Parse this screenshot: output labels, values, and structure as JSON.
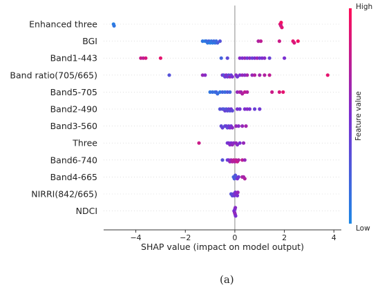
{
  "panel_label": "(a)",
  "colors": {
    "low": "#1e88e5",
    "high": "#ff0d57",
    "zero_line": "#888888"
  },
  "chart_data": {
    "type": "scatter",
    "subtype": "shap-beeswarm",
    "xlabel": "SHAP value (impact on model output)",
    "xlim": [
      -5.3,
      4.3
    ],
    "x_ticks": [
      -4,
      -2,
      0,
      2,
      4
    ],
    "x_tick_labels": [
      "−4",
      "−2",
      "0",
      "2",
      "4"
    ],
    "colorbar": {
      "label": "Feature value",
      "high_label": "High",
      "low_label": "Low"
    },
    "features": [
      {
        "name": "Enhanced three",
        "points": [
          [
            -4.9,
            0.05
          ],
          [
            -4.88,
            0.1
          ],
          [
            1.83,
            0.85
          ],
          [
            1.85,
            0.9
          ],
          [
            1.86,
            0.8
          ],
          [
            1.87,
            0.95
          ],
          [
            1.9,
            0.88
          ]
        ]
      },
      {
        "name": "BGI",
        "points": [
          [
            -1.3,
            0.1
          ],
          [
            -1.2,
            0.05
          ],
          [
            -1.15,
            0.15
          ],
          [
            -1.1,
            0.1
          ],
          [
            -1.05,
            0.2
          ],
          [
            -1.0,
            0.05
          ],
          [
            -0.95,
            0.12
          ],
          [
            -0.9,
            0.08
          ],
          [
            -0.85,
            0.18
          ],
          [
            -0.8,
            0.1
          ],
          [
            -0.75,
            0.15
          ],
          [
            -0.7,
            0.22
          ],
          [
            -0.6,
            0.3
          ],
          [
            0.95,
            0.7
          ],
          [
            1.05,
            0.75
          ],
          [
            1.8,
            0.8
          ],
          [
            2.35,
            0.9
          ],
          [
            2.4,
            0.85
          ],
          [
            2.55,
            0.95
          ]
        ]
      },
      {
        "name": "Band1-443",
        "points": [
          [
            -3.8,
            0.8
          ],
          [
            -3.7,
            0.75
          ],
          [
            -3.6,
            0.85
          ],
          [
            -3.0,
            0.9
          ],
          [
            -0.55,
            0.2
          ],
          [
            -0.3,
            0.35
          ],
          [
            0.2,
            0.55
          ],
          [
            0.3,
            0.5
          ],
          [
            0.4,
            0.6
          ],
          [
            0.5,
            0.45
          ],
          [
            0.6,
            0.55
          ],
          [
            0.7,
            0.4
          ],
          [
            0.8,
            0.5
          ],
          [
            0.9,
            0.6
          ],
          [
            1.0,
            0.45
          ],
          [
            1.1,
            0.5
          ],
          [
            1.2,
            0.55
          ],
          [
            1.4,
            0.4
          ],
          [
            2.0,
            0.5
          ]
        ]
      },
      {
        "name": "Band ratio(705/665)",
        "points": [
          [
            -2.65,
            0.3
          ],
          [
            -1.3,
            0.6
          ],
          [
            -1.2,
            0.55
          ],
          [
            -0.5,
            0.5
          ],
          [
            -0.45,
            0.3
          ],
          [
            -0.4,
            0.4
          ],
          [
            -0.35,
            0.55
          ],
          [
            -0.3,
            0.45
          ],
          [
            -0.25,
            0.35
          ],
          [
            -0.2,
            0.6
          ],
          [
            -0.15,
            0.4
          ],
          [
            -0.1,
            0.5
          ],
          [
            0.05,
            0.55
          ],
          [
            0.1,
            0.45
          ],
          [
            0.2,
            0.5
          ],
          [
            0.3,
            0.6
          ],
          [
            0.4,
            0.55
          ],
          [
            0.5,
            0.65
          ],
          [
            0.7,
            0.6
          ],
          [
            0.8,
            0.7
          ],
          [
            1.0,
            0.65
          ],
          [
            1.2,
            0.7
          ],
          [
            1.4,
            0.75
          ],
          [
            3.75,
            0.9
          ]
        ]
      },
      {
        "name": "Band5-705",
        "points": [
          [
            -1.0,
            0.1
          ],
          [
            -0.9,
            0.15
          ],
          [
            -0.8,
            0.1
          ],
          [
            -0.75,
            0.2
          ],
          [
            -0.7,
            0.15
          ],
          [
            -0.6,
            0.1
          ],
          [
            -0.5,
            0.2
          ],
          [
            -0.4,
            0.15
          ],
          [
            -0.3,
            0.25
          ],
          [
            -0.2,
            0.2
          ],
          [
            0.1,
            0.6
          ],
          [
            0.2,
            0.7
          ],
          [
            0.25,
            0.65
          ],
          [
            0.3,
            0.7
          ],
          [
            0.4,
            0.75
          ],
          [
            0.5,
            0.7
          ],
          [
            1.5,
            0.8
          ],
          [
            1.8,
            0.85
          ],
          [
            1.95,
            0.9
          ]
        ]
      },
      {
        "name": "Band2-490",
        "points": [
          [
            -0.6,
            0.3
          ],
          [
            -0.5,
            0.35
          ],
          [
            -0.45,
            0.25
          ],
          [
            -0.4,
            0.4
          ],
          [
            -0.35,
            0.3
          ],
          [
            -0.3,
            0.35
          ],
          [
            -0.25,
            0.4
          ],
          [
            -0.2,
            0.3
          ],
          [
            -0.15,
            0.45
          ],
          [
            -0.1,
            0.35
          ],
          [
            0.1,
            0.5
          ],
          [
            0.2,
            0.45
          ],
          [
            0.4,
            0.5
          ],
          [
            0.5,
            0.55
          ],
          [
            0.6,
            0.5
          ],
          [
            0.8,
            0.4
          ],
          [
            1.0,
            0.45
          ]
        ]
      },
      {
        "name": "Band3-560",
        "points": [
          [
            -0.55,
            0.35
          ],
          [
            -0.5,
            0.4
          ],
          [
            -0.4,
            0.3
          ],
          [
            -0.35,
            0.45
          ],
          [
            -0.3,
            0.35
          ],
          [
            -0.25,
            0.4
          ],
          [
            -0.2,
            0.5
          ],
          [
            -0.15,
            0.45
          ],
          [
            -0.1,
            0.55
          ],
          [
            0.05,
            0.6
          ],
          [
            0.15,
            0.55
          ],
          [
            0.3,
            0.6
          ],
          [
            0.45,
            0.65
          ]
        ]
      },
      {
        "name": "Three",
        "points": [
          [
            -1.45,
            0.8
          ],
          [
            -0.3,
            0.45
          ],
          [
            -0.25,
            0.5
          ],
          [
            -0.2,
            0.55
          ],
          [
            -0.15,
            0.5
          ],
          [
            -0.1,
            0.6
          ],
          [
            -0.05,
            0.55
          ],
          [
            0.05,
            0.6
          ],
          [
            0.1,
            0.55
          ],
          [
            0.2,
            0.5
          ],
          [
            0.35,
            0.6
          ]
        ]
      },
      {
        "name": "Band6-740",
        "points": [
          [
            -0.5,
            0.3
          ],
          [
            -0.3,
            0.4
          ],
          [
            -0.25,
            0.5
          ],
          [
            -0.2,
            0.6
          ],
          [
            -0.15,
            0.65
          ],
          [
            -0.1,
            0.7
          ],
          [
            -0.05,
            0.75
          ],
          [
            0.0,
            0.7
          ],
          [
            0.05,
            0.75
          ],
          [
            0.1,
            0.8
          ],
          [
            0.15,
            0.7
          ],
          [
            0.3,
            0.75
          ],
          [
            0.4,
            0.6
          ]
        ]
      },
      {
        "name": "Band4-665",
        "points": [
          [
            -0.05,
            0.2
          ],
          [
            -0.02,
            0.25
          ],
          [
            0.02,
            0.3
          ],
          [
            0.05,
            0.25
          ],
          [
            0.1,
            0.5
          ],
          [
            0.15,
            0.45
          ],
          [
            0.3,
            0.7
          ],
          [
            0.35,
            0.65
          ],
          [
            0.4,
            0.7
          ]
        ]
      },
      {
        "name": "NIRRI(842/665)",
        "points": [
          [
            -0.15,
            0.3
          ],
          [
            -0.1,
            0.35
          ],
          [
            -0.05,
            0.4
          ],
          [
            -0.02,
            0.45
          ],
          [
            0.02,
            0.5
          ],
          [
            0.05,
            0.55
          ],
          [
            0.1,
            0.5
          ],
          [
            0.12,
            0.6
          ]
        ]
      },
      {
        "name": "NDCI",
        "points": [
          [
            -0.03,
            0.5
          ],
          [
            -0.01,
            0.55
          ],
          [
            0.0,
            0.5
          ],
          [
            0.01,
            0.6
          ],
          [
            0.02,
            0.55
          ],
          [
            0.03,
            0.5
          ]
        ]
      }
    ]
  }
}
